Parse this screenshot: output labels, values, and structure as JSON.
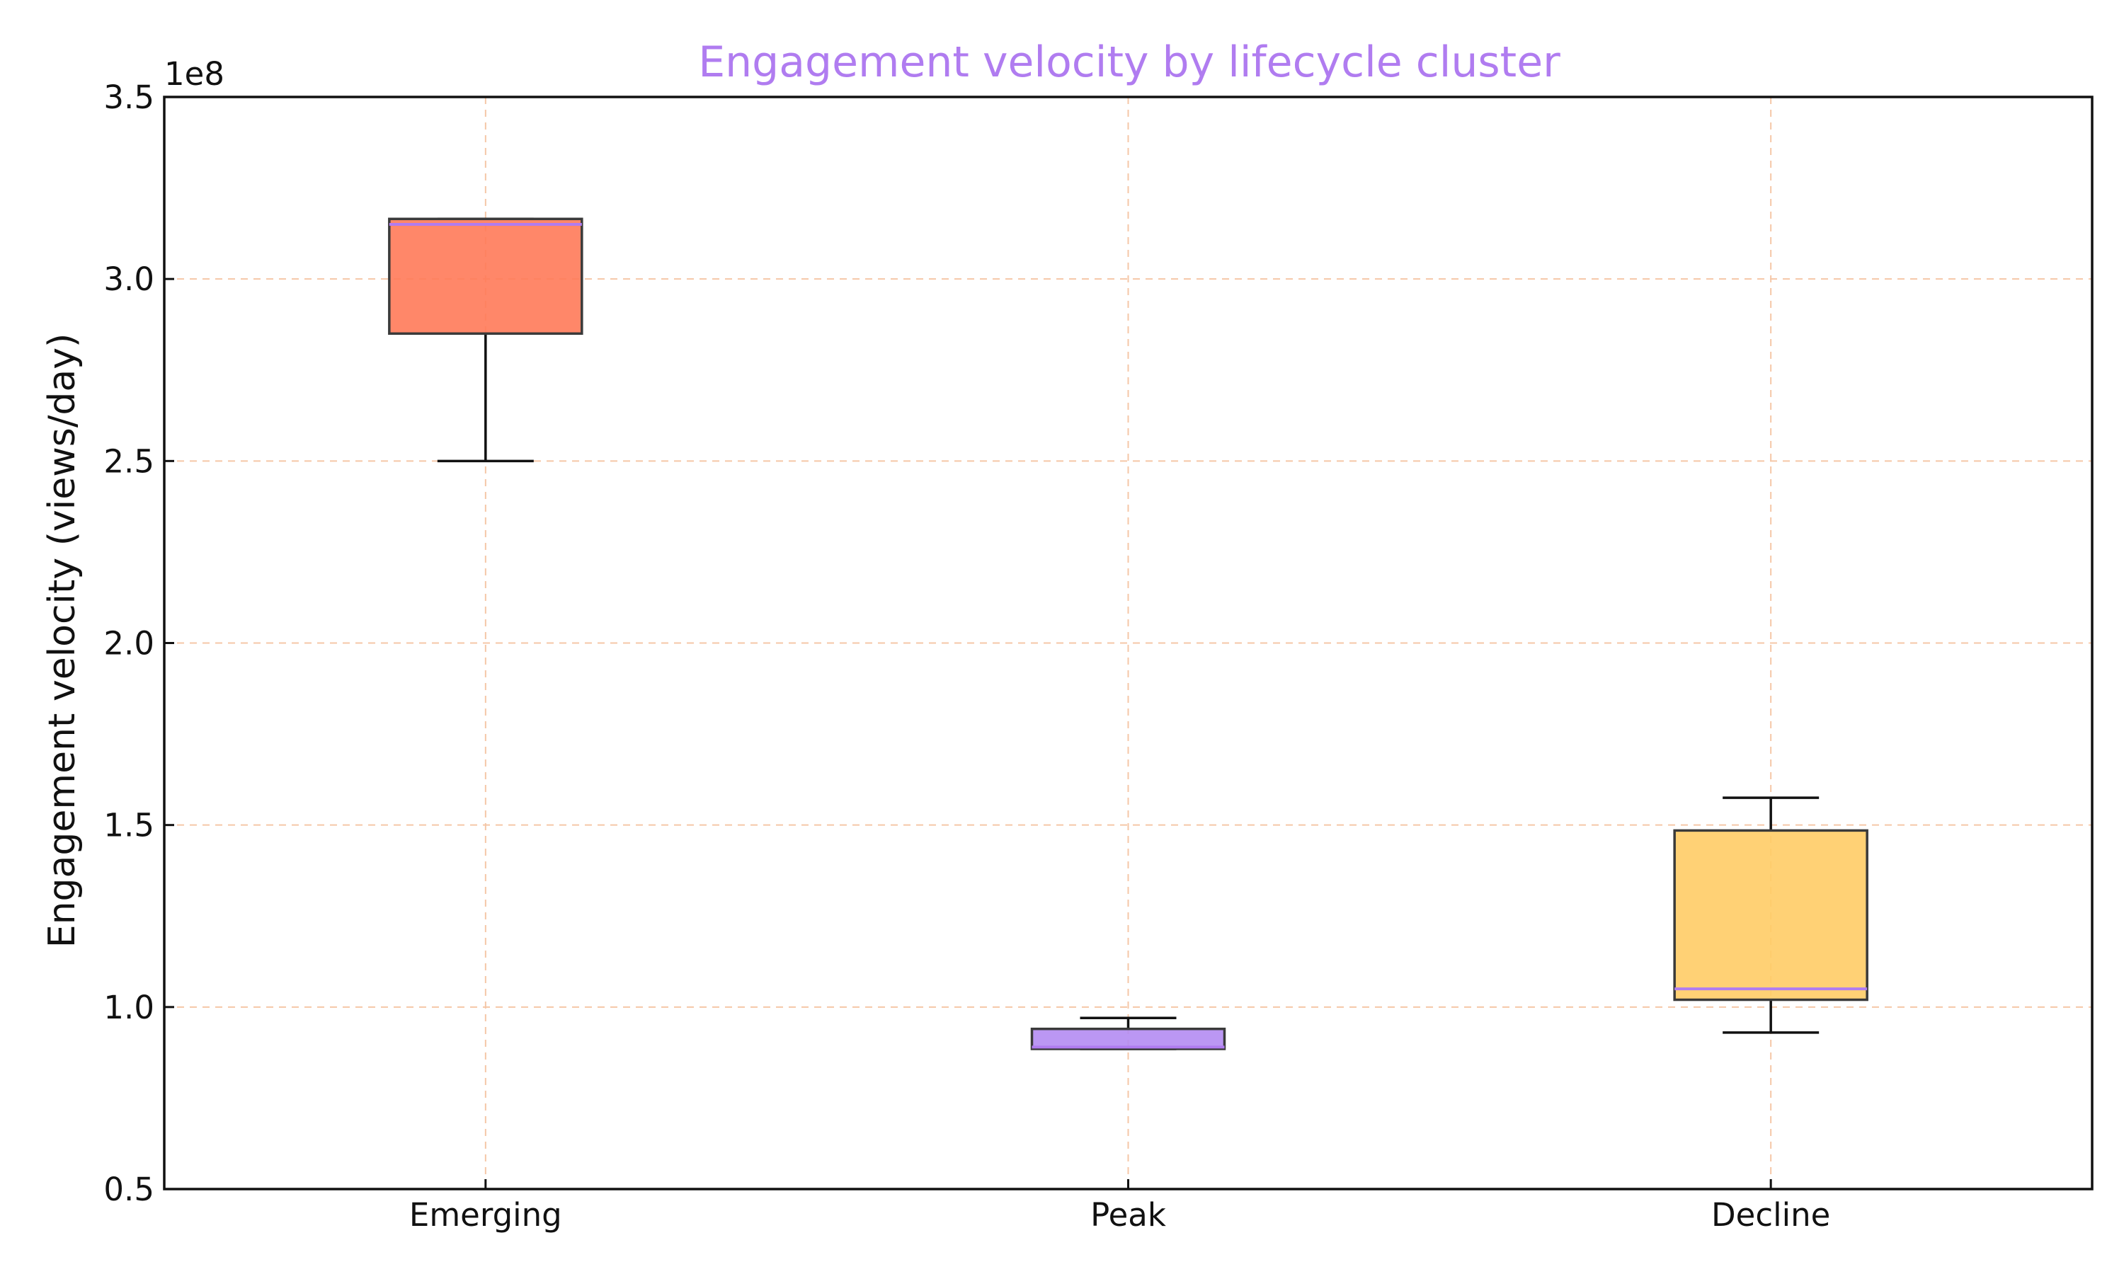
{
  "chart_data": {
    "type": "box",
    "title": "Engagement velocity by lifecycle cluster",
    "xlabel": "",
    "ylabel": "Engagement velocity (views/day)",
    "y_multiplier_label": "1e8",
    "y_scale": 100000000,
    "ylim": [
      50000000,
      350000000
    ],
    "yticks": [
      50000000,
      100000000,
      150000000,
      200000000,
      250000000,
      300000000,
      350000000
    ],
    "ytick_labels": [
      "0.5",
      "1.0",
      "1.5",
      "2.0",
      "2.5",
      "3.0",
      "3.5"
    ],
    "grid": true,
    "categories": [
      "Emerging",
      "Peak",
      "Decline"
    ],
    "boxes": [
      {
        "category": "Emerging",
        "whisker_low": 250000000,
        "q1": 285000000,
        "median": 315000000,
        "q3": 316500000,
        "whisker_high": 316500000,
        "color": "#ff7a59"
      },
      {
        "category": "Peak",
        "whisker_low": 88500000,
        "q1": 88500000,
        "median": 89000000,
        "q3": 94000000,
        "whisker_high": 97000000,
        "color": "#b48cf2"
      },
      {
        "category": "Decline",
        "whisker_low": 93000000,
        "q1": 102000000,
        "median": 105000000,
        "q3": 148500000,
        "whisker_high": 157500000,
        "color": "#ffcc66"
      }
    ],
    "median_color": "#b07cf0",
    "grid_color": "#f5c7a7",
    "title_color": "#b07cf0"
  }
}
